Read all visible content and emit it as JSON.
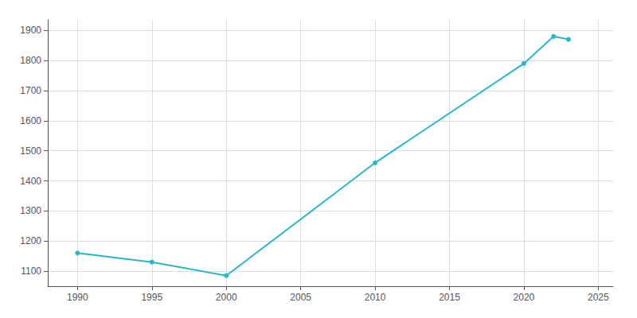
{
  "chart_data": {
    "type": "line",
    "x": [
      1990,
      1995,
      2000,
      2010,
      2020,
      2022,
      2023
    ],
    "values": [
      1160,
      1130,
      1085,
      1460,
      1790,
      1880,
      1870
    ],
    "color": "#29b8c8",
    "marker": "circle",
    "xlim": [
      1988,
      2026
    ],
    "xticks": [
      1990,
      1995,
      2000,
      2005,
      2010,
      2015,
      2020,
      2025
    ],
    "ylim": [
      1050,
      1935
    ],
    "yticks": [
      1100,
      1200,
      1300,
      1400,
      1500,
      1600,
      1700,
      1800,
      1900
    ],
    "grid": true
  }
}
